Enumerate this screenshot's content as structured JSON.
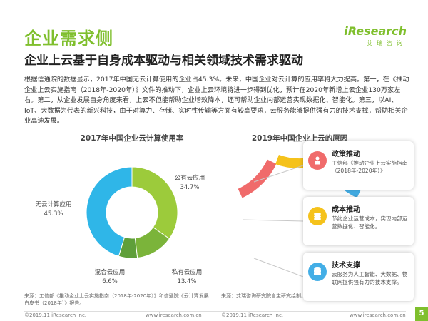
{
  "header": {
    "section_title": "企业需求侧",
    "headline": "企业上云基于自身成本驱动与相关领域技术需求驱动",
    "brand_name": "iResearch",
    "brand_sub": "艾瑞咨询"
  },
  "intro_text": "根据信通院的数据显示，2017年中国无云计算使用的企业占45.3%。未来，中国企业对云计算的应用率将大力提高。第一，在《推动企业上云实施指南（2018年-2020年）》文件的推动下，企业上云环境将进一步得到优化，预计在2020年新增上云企业130万家左右。第二，从企业发展自身角度来看，上云不但能帮助企业增效降本，还可帮助企业内部运营实现数据化、智能化。第三，以AI、IoT、大数据为代表的新兴科技，由于对算力、存储、实时性传输等方面有较高要求，云服务能够提供强有力的技术支撑，帮助相关企业高速发展。",
  "chart_data": {
    "type": "pie",
    "title": "2017年中国企业云计算使用率",
    "donut": true,
    "slices": [
      {
        "label": "公有云应用",
        "value": 34.7,
        "display": "34.7%",
        "color": "#9ccb3b"
      },
      {
        "label": "私有云应用",
        "value": 13.4,
        "display": "13.4%",
        "color": "#7bb43a"
      },
      {
        "label": "混合云应用",
        "value": 6.6,
        "display": "6.6%",
        "color": "#5f9f3a"
      },
      {
        "label": "无云计算应用",
        "value": 45.3,
        "display": "45.3%",
        "color": "#2fb6e8"
      }
    ]
  },
  "right_panel": {
    "title": "2019年中国企业上云的原因",
    "arc_colors": [
      "#f06b6b",
      "#f5c21b",
      "#43aee6"
    ],
    "cards": [
      {
        "title": "政策推动",
        "body": "工信部《推动企业上云实施指南（2018年-2020年）》",
        "icon": "person-doc-icon",
        "icon_color": "#f06b6b"
      },
      {
        "title": "成本推动",
        "body": "节约企业运营成本，实现内部运营数据化、智能化。",
        "icon": "coins-icon",
        "icon_color": "#f5c21b"
      },
      {
        "title": "技术支撑",
        "body": "云服务为人工智能、大数据、物联网提供强有力的技术支撑。",
        "icon": "database-icon",
        "icon_color": "#43aee6"
      }
    ]
  },
  "sources": {
    "left": "来源：工信部《推动企业上云实施指南（2018年-2020年）》和信通院《云计算发展白皮书（2018年）》报告。",
    "right": "来源：艾瑞咨询研究院自主研究绘制。"
  },
  "footer": {
    "copyright_left": "©2019.11 iResearch Inc.",
    "url_left": "www.iresearch.com.cn",
    "copyright_right": "©2019.11 iResearch Inc.",
    "url_right": "www.iresearch.com.cn",
    "page_number": "5"
  }
}
